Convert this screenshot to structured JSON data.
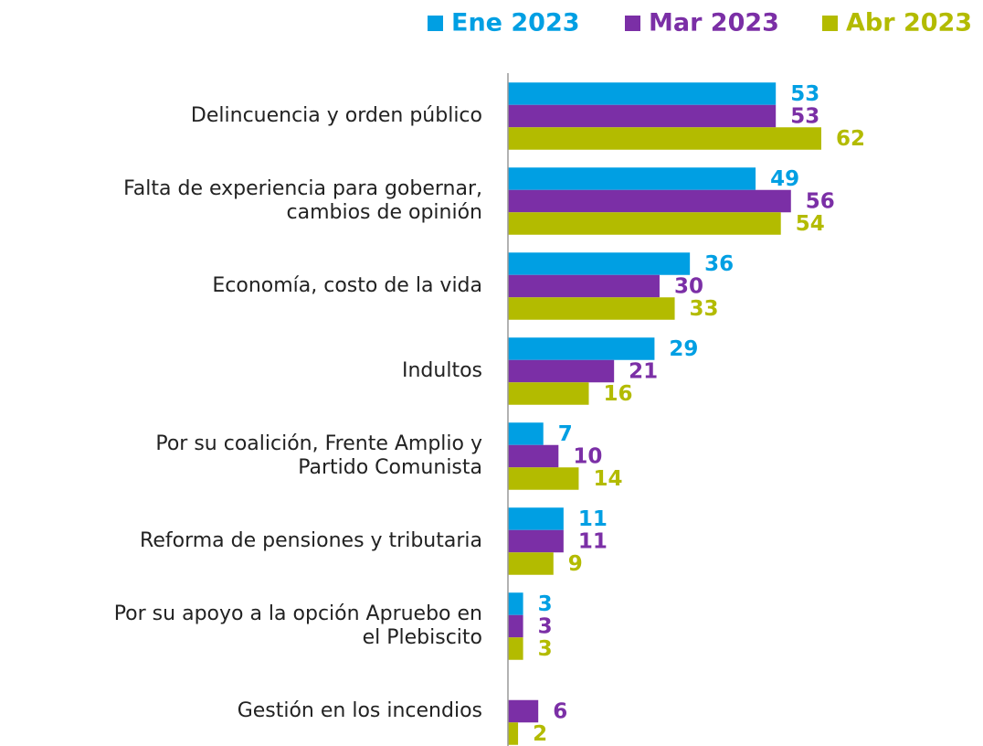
{
  "chart_data": {
    "type": "bar",
    "orientation": "horizontal",
    "categories": [
      "Delincuencia y orden público",
      "Falta de experiencia para gobernar,\ncambios de opinión",
      "Economía, costo de la vida",
      "Indultos",
      "Por su coalición, Frente Amplio y\nPartido Comunista",
      "Reforma de pensiones y tributaria",
      "Por su apoyo a la opción Apruebo en\nel Plebiscito",
      "Gestión en los incendios"
    ],
    "series": [
      {
        "name": "Ene 2023",
        "color": "#009fe3",
        "values": [
          53,
          49,
          36,
          29,
          7,
          11,
          3,
          null
        ]
      },
      {
        "name": "Mar 2023",
        "color": "#7b2fa6",
        "values": [
          53,
          56,
          30,
          21,
          10,
          11,
          3,
          6
        ]
      },
      {
        "name": "Abr 2023",
        "color": "#b3bb00",
        "values": [
          62,
          54,
          33,
          16,
          14,
          9,
          3,
          2
        ]
      }
    ],
    "xlim": [
      0,
      94
    ],
    "legend": "top"
  }
}
